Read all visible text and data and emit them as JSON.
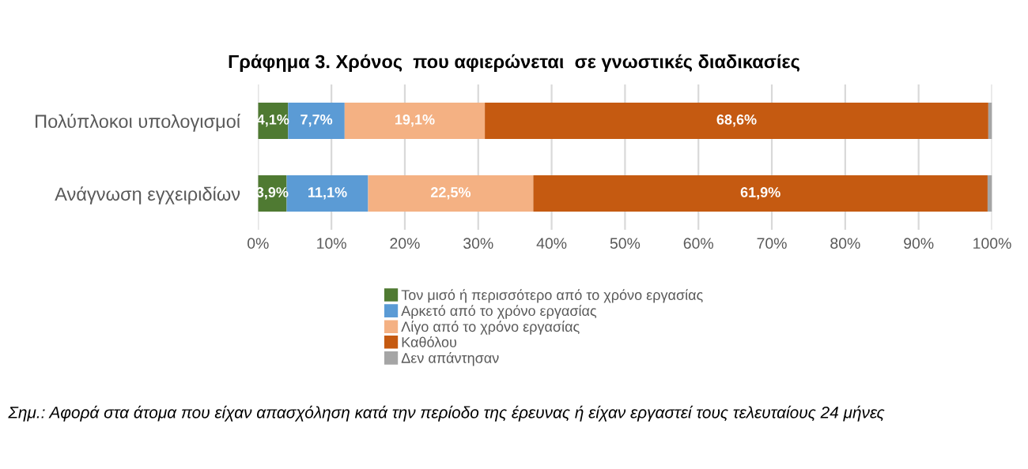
{
  "chart_data": {
    "type": "bar",
    "orientation": "horizontal",
    "stacked": true,
    "title": "Γράφημα 3. Χρόνος  που αφιερώνεται  σε γνωστικές διαδικασίες",
    "categories": [
      "Πολύπλοκοι υπολογισμοί",
      "Ανάγνωση εγχειριδίων"
    ],
    "series": [
      {
        "name": "Τον μισό ή περισσότερο από το χρόνο εργασίας",
        "color": "#4f7a32",
        "values": [
          4.1,
          3.9
        ],
        "value_labels": [
          "4,1%",
          "3,9%"
        ]
      },
      {
        "name": "Αρκετό από το χρόνο εργασίας",
        "color": "#5b9bd5",
        "values": [
          7.7,
          11.1
        ],
        "value_labels": [
          "7,7%",
          "11,1%"
        ]
      },
      {
        "name": "Λίγο από το χρόνο εργασίας",
        "color": "#f4b183",
        "values": [
          19.1,
          22.5
        ],
        "value_labels": [
          "19,1%",
          "22,5%"
        ]
      },
      {
        "name": "Καθόλου",
        "color": "#c55a11",
        "values": [
          68.6,
          61.9
        ],
        "value_labels": [
          "68,6%",
          "61,9%"
        ]
      },
      {
        "name": "Δεν απάντησαν",
        "color": "#a5a5a5",
        "values": [
          0.5,
          0.6
        ],
        "value_labels": [
          null,
          null
        ]
      }
    ],
    "xlim": [
      0,
      100
    ],
    "xticks": [
      {
        "value": 0,
        "label": "0%"
      },
      {
        "value": 10,
        "label": "10%"
      },
      {
        "value": 20,
        "label": "20%"
      },
      {
        "value": 30,
        "label": "30%"
      },
      {
        "value": 40,
        "label": "40%"
      },
      {
        "value": 50,
        "label": "50%"
      },
      {
        "value": 60,
        "label": "60%"
      },
      {
        "value": 70,
        "label": "70%"
      },
      {
        "value": 80,
        "label": "80%"
      },
      {
        "value": 90,
        "label": "90%"
      },
      {
        "value": 100,
        "label": "100%"
      }
    ],
    "grid": "x",
    "legend": "bottom",
    "annotations": [
      "Σημ.: Αφορά στα άτομα που είχαν απασχόληση κατά την περίοδο της έρευνας ή είχαν εργαστεί τους τελευταίους 24 μήνες"
    ]
  }
}
